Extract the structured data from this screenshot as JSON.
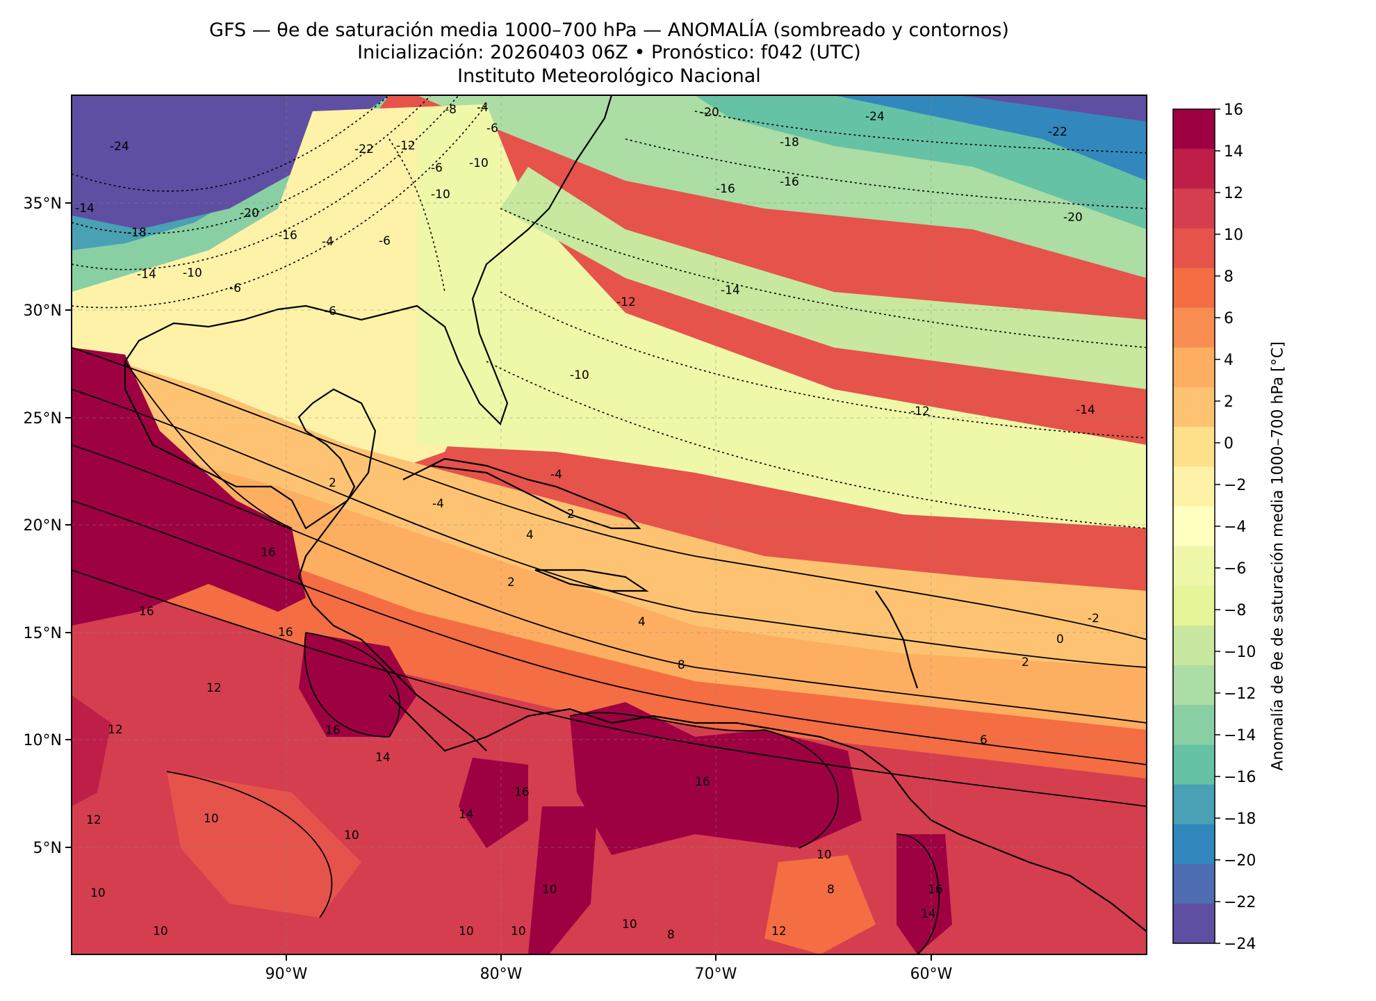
{
  "figure": {
    "title_line1": "GFS — θe de saturación media 1000–700 hPa — ANOMALÍA (sombreado y contornos)",
    "title_line2": "Inicialización: 20260403 06Z   •   Pronóstico: f042 (UTC)",
    "title_line3": "Instituto Meteorológico Nacional"
  },
  "map": {
    "lon_range": [
      -100,
      -50
    ],
    "lat_range": [
      0,
      40
    ],
    "lon_ticks": [
      "90°W",
      "80°W",
      "70°W",
      "60°W"
    ],
    "lat_ticks": [
      "35°N",
      "30°N",
      "25°N",
      "20°N",
      "15°N",
      "10°N",
      "5°N"
    ]
  },
  "colorbar": {
    "label": "Anomalía de θe de saturación media 1000–700 hPa [°C]",
    "ticks": [
      "16",
      "14",
      "12",
      "10",
      "8",
      "6",
      "4",
      "2",
      "0",
      "−2",
      "−4",
      "−6",
      "−8",
      "−10",
      "−12",
      "−14",
      "−16",
      "−18",
      "−20",
      "−22",
      "−24"
    ],
    "colors": [
      "#9e0142",
      "#be1e47",
      "#d53e4f",
      "#e5534b",
      "#f46d43",
      "#f88d52",
      "#fdae61",
      "#fdc372",
      "#fee08b",
      "#fef2a8",
      "#ffffbf",
      "#eef8a8",
      "#e6f598",
      "#c7e89e",
      "#abdda4",
      "#88cfa4",
      "#66c2a5",
      "#4aa0b4",
      "#3288bd",
      "#4e6db2",
      "#5e4fa2"
    ]
  },
  "contour_labels": [
    "-24",
    "-22",
    "-20",
    "-18",
    "-16",
    "-14",
    "-12",
    "-10",
    "-8",
    "-6",
    "-4",
    "-2",
    "0",
    "2",
    "4",
    "6",
    "8",
    "10",
    "12",
    "14",
    "16"
  ]
}
